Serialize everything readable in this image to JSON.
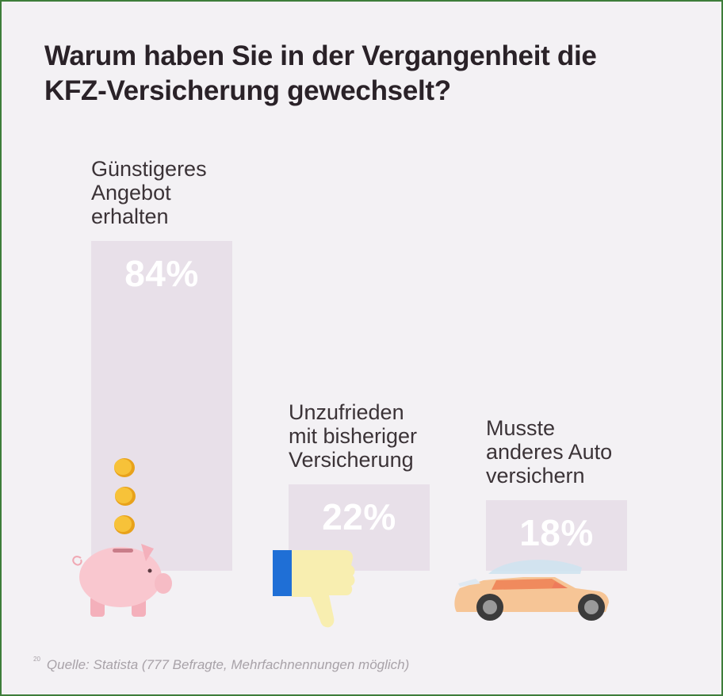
{
  "title": "Warum haben Sie in der Vergangenheit die KFZ-Versicherung gewechselt?",
  "source": {
    "marker": "20",
    "text": "Quelle: Statista (777 Befragte, Mehrfachnennungen möglich)"
  },
  "colors": {
    "frame": "#3e7d3a",
    "background": "#f3f1f4",
    "bar": "#e8e0e9",
    "value_text": "#ffffff"
  },
  "icons": [
    "piggy-bank-icon",
    "coin-icon",
    "thumbs-down-icon",
    "car-icon"
  ],
  "chart_data": {
    "type": "bar",
    "title": "Warum haben Sie in der Vergangenheit die KFZ-Versicherung gewechselt?",
    "categories": [
      "Günstigeres\nAngebot\nerhalten",
      "Unzufrieden\nmit bisheriger\nVersicherung",
      "Musste\nanderes Auto\nversichern"
    ],
    "values": [
      84,
      22,
      18
    ],
    "value_labels": [
      "84%",
      "22%",
      "18%"
    ],
    "unit": "%",
    "ylim": [
      0,
      84
    ],
    "grid": false,
    "legend": "none"
  }
}
